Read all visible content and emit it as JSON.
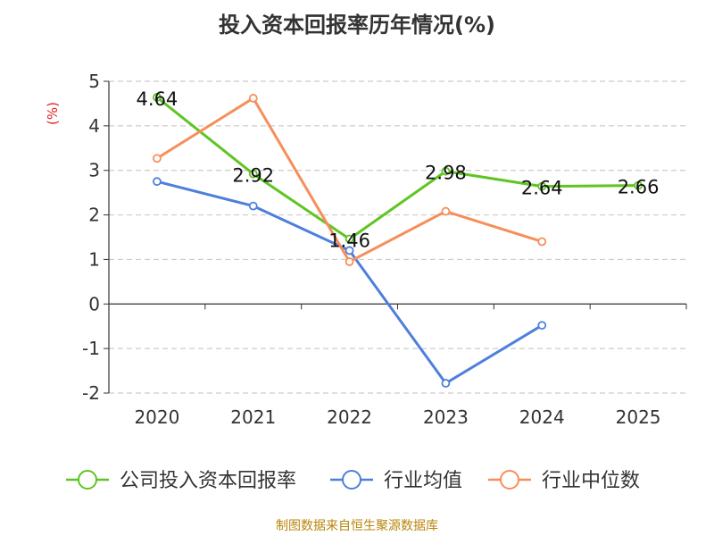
{
  "title": "投入资本回报率历年情况(%)",
  "source": "制图数据来自恒生聚源数据库",
  "chart_data": {
    "type": "line",
    "categories": [
      "2020",
      "2021",
      "2022",
      "2023",
      "2024",
      "2025"
    ],
    "ylabel": "(%)",
    "ylim": [
      -2,
      5
    ],
    "yticks": [
      5,
      4,
      3,
      2,
      1,
      0,
      -1,
      -2
    ],
    "grid": true,
    "legend_position": "bottom",
    "series": [
      {
        "name": "公司投入资本回报率",
        "color": "#5ec522",
        "values": [
          4.64,
          2.92,
          1.46,
          2.98,
          2.64,
          2.66
        ],
        "labels": [
          "4.64",
          "2.92",
          "1.46",
          "2.98",
          "2.64",
          "2.66"
        ]
      },
      {
        "name": "行业均值",
        "color": "#4e7fdd",
        "values": [
          2.75,
          2.2,
          1.2,
          -1.78,
          -0.48,
          null
        ]
      },
      {
        "name": "行业中位数",
        "color": "#f78e5a",
        "values": [
          3.27,
          4.62,
          0.95,
          2.08,
          1.4,
          null
        ]
      }
    ]
  }
}
